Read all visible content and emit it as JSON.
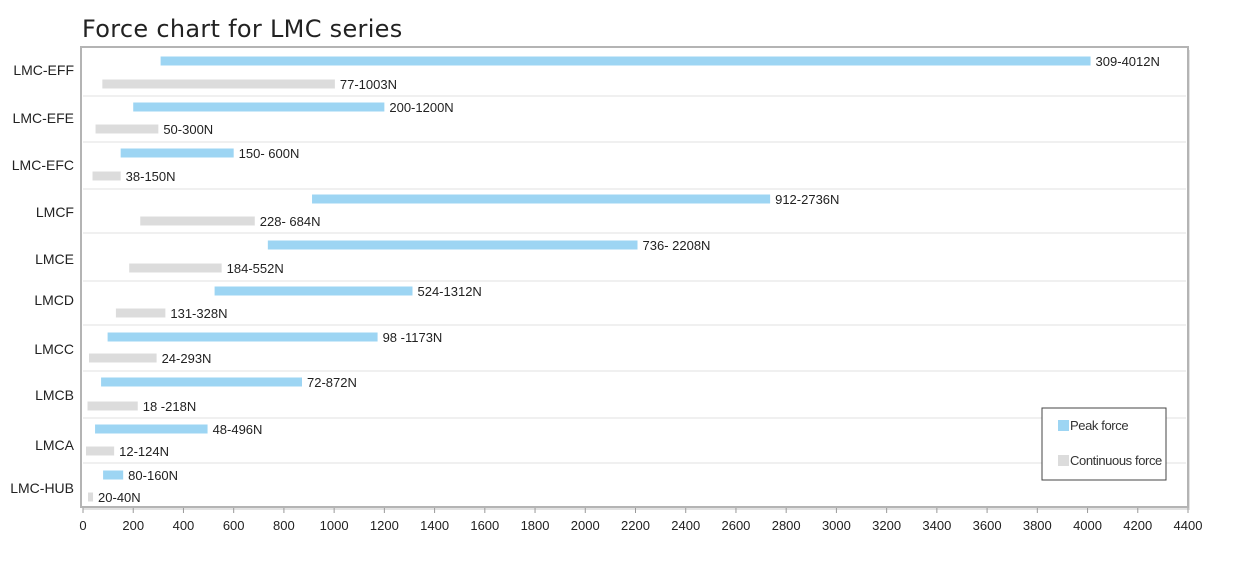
{
  "chart_data": {
    "type": "bar",
    "orientation": "horizontal-range",
    "title": "Force chart for LMC series",
    "xlabel": "",
    "ylabel": "",
    "xlim": [
      0,
      4400
    ],
    "xticks": [
      0,
      200,
      400,
      600,
      800,
      1000,
      1200,
      1400,
      1600,
      1800,
      2000,
      2200,
      2400,
      2600,
      2800,
      3000,
      3200,
      3400,
      3600,
      3800,
      4000,
      4200,
      4400
    ],
    "grid": "horizontal separators between categories",
    "legend_position": "bottom-right",
    "categories": [
      "LMC-EFF",
      "LMC-EFE",
      "LMC-EFC",
      "LMCF",
      "LMCE",
      "LMCD",
      "LMCC",
      "LMCB",
      "LMCA",
      "LMC-HUB"
    ],
    "series": [
      {
        "name": "Peak force",
        "color": "#9dd5f3",
        "ranges": [
          [
            309,
            4012
          ],
          [
            200,
            1200
          ],
          [
            150,
            600
          ],
          [
            912,
            2736
          ],
          [
            736,
            2208
          ],
          [
            524,
            1312
          ],
          [
            98,
            1173
          ],
          [
            72,
            872
          ],
          [
            48,
            496
          ],
          [
            80,
            160
          ]
        ],
        "labels": [
          "309-4012N",
          "200-1200N",
          "150- 600N",
          "912-2736N",
          "736- 2208N",
          "524-1312N",
          "98 -1173N",
          "72-872N",
          "48-496N",
          "80-160N"
        ]
      },
      {
        "name": "Continuous force",
        "color": "#dcdcdc",
        "ranges": [
          [
            77,
            1003
          ],
          [
            50,
            300
          ],
          [
            38,
            150
          ],
          [
            228,
            684
          ],
          [
            184,
            552
          ],
          [
            131,
            328
          ],
          [
            24,
            293
          ],
          [
            18,
            218
          ],
          [
            12,
            124
          ],
          [
            20,
            40
          ]
        ],
        "labels": [
          "77-1003N",
          "50-300N",
          "38-150N",
          "228- 684N",
          "184-552N",
          "131-328N",
          "24-293N",
          "18 -218N",
          "12-124N",
          "20-40N"
        ]
      }
    ]
  }
}
